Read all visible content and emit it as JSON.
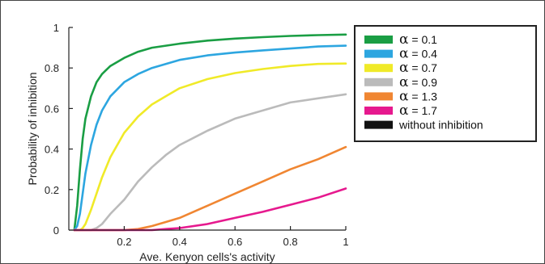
{
  "chart_data": {
    "type": "line",
    "title": "",
    "xlabel": "Ave. Kenyon cells's activity",
    "ylabel": "Probability of inhibition",
    "xlim": [
      0,
      1
    ],
    "ylim": [
      0,
      1
    ],
    "x_ticks": [
      "0.2",
      "0.4",
      "0.6",
      "0.8",
      "1"
    ],
    "y_ticks": [
      "0",
      "0.2",
      "0.4",
      "0.6",
      "0.8",
      "1"
    ],
    "grid": false,
    "legend_position": "top-right",
    "x": [
      0.02,
      0.03,
      0.04,
      0.05,
      0.06,
      0.08,
      0.1,
      0.12,
      0.15,
      0.2,
      0.25,
      0.3,
      0.35,
      0.4,
      0.5,
      0.6,
      0.7,
      0.8,
      0.9,
      1.0
    ],
    "series": [
      {
        "name": "α = 0.1",
        "label_symbol": "α",
        "label_rest": " = 0.1",
        "color": "#1a9e44",
        "values": [
          0.0,
          0.12,
          0.3,
          0.45,
          0.55,
          0.66,
          0.73,
          0.77,
          0.81,
          0.85,
          0.88,
          0.9,
          0.91,
          0.92,
          0.935,
          0.945,
          0.952,
          0.958,
          0.962,
          0.965
        ]
      },
      {
        "name": "α = 0.4",
        "label_symbol": "α",
        "label_rest": " = 0.4",
        "color": "#2da6e0",
        "values": [
          0.0,
          0.02,
          0.08,
          0.18,
          0.28,
          0.42,
          0.52,
          0.59,
          0.66,
          0.73,
          0.77,
          0.8,
          0.82,
          0.84,
          0.862,
          0.876,
          0.887,
          0.896,
          0.906,
          0.91
        ]
      },
      {
        "name": "α = 0.7",
        "label_symbol": "α",
        "label_rest": " = 0.7",
        "color": "#f0ea28",
        "values": [
          0.0,
          0.0,
          0.0,
          0.01,
          0.03,
          0.1,
          0.18,
          0.26,
          0.36,
          0.48,
          0.56,
          0.62,
          0.66,
          0.7,
          0.745,
          0.775,
          0.795,
          0.81,
          0.82,
          0.822
        ]
      },
      {
        "name": "α = 0.9",
        "label_symbol": "α",
        "label_rest": " = 0.9",
        "color": "#bbbbbb",
        "values": [
          0.0,
          0.0,
          0.0,
          0.0,
          0.0,
          0.0,
          0.01,
          0.03,
          0.08,
          0.15,
          0.24,
          0.31,
          0.37,
          0.42,
          0.49,
          0.55,
          0.59,
          0.63,
          0.65,
          0.67
        ]
      },
      {
        "name": "α = 1.3",
        "label_symbol": "α",
        "label_rest": " = 1.3",
        "color": "#f08632",
        "values": [
          0.0,
          0.0,
          0.0,
          0.0,
          0.0,
          0.0,
          0.0,
          0.0,
          0.0,
          0.0,
          0.005,
          0.02,
          0.04,
          0.06,
          0.12,
          0.18,
          0.24,
          0.3,
          0.35,
          0.41
        ]
      },
      {
        "name": "α = 1.7",
        "label_symbol": "α",
        "label_rest": " = 1.7",
        "color": "#e6198e",
        "values": [
          0.0,
          0.0,
          0.0,
          0.0,
          0.0,
          0.0,
          0.0,
          0.0,
          0.0,
          0.0,
          0.0,
          0.0,
          0.005,
          0.01,
          0.03,
          0.06,
          0.09,
          0.125,
          0.16,
          0.205
        ]
      },
      {
        "name": "without inhibition",
        "label_symbol": "",
        "label_rest": "without inhibition",
        "color": "#111111",
        "values": [
          0,
          0,
          0,
          0,
          0,
          0,
          0,
          0,
          0,
          0,
          0,
          0,
          0,
          0,
          0,
          0,
          0,
          0,
          0,
          0
        ]
      }
    ]
  }
}
